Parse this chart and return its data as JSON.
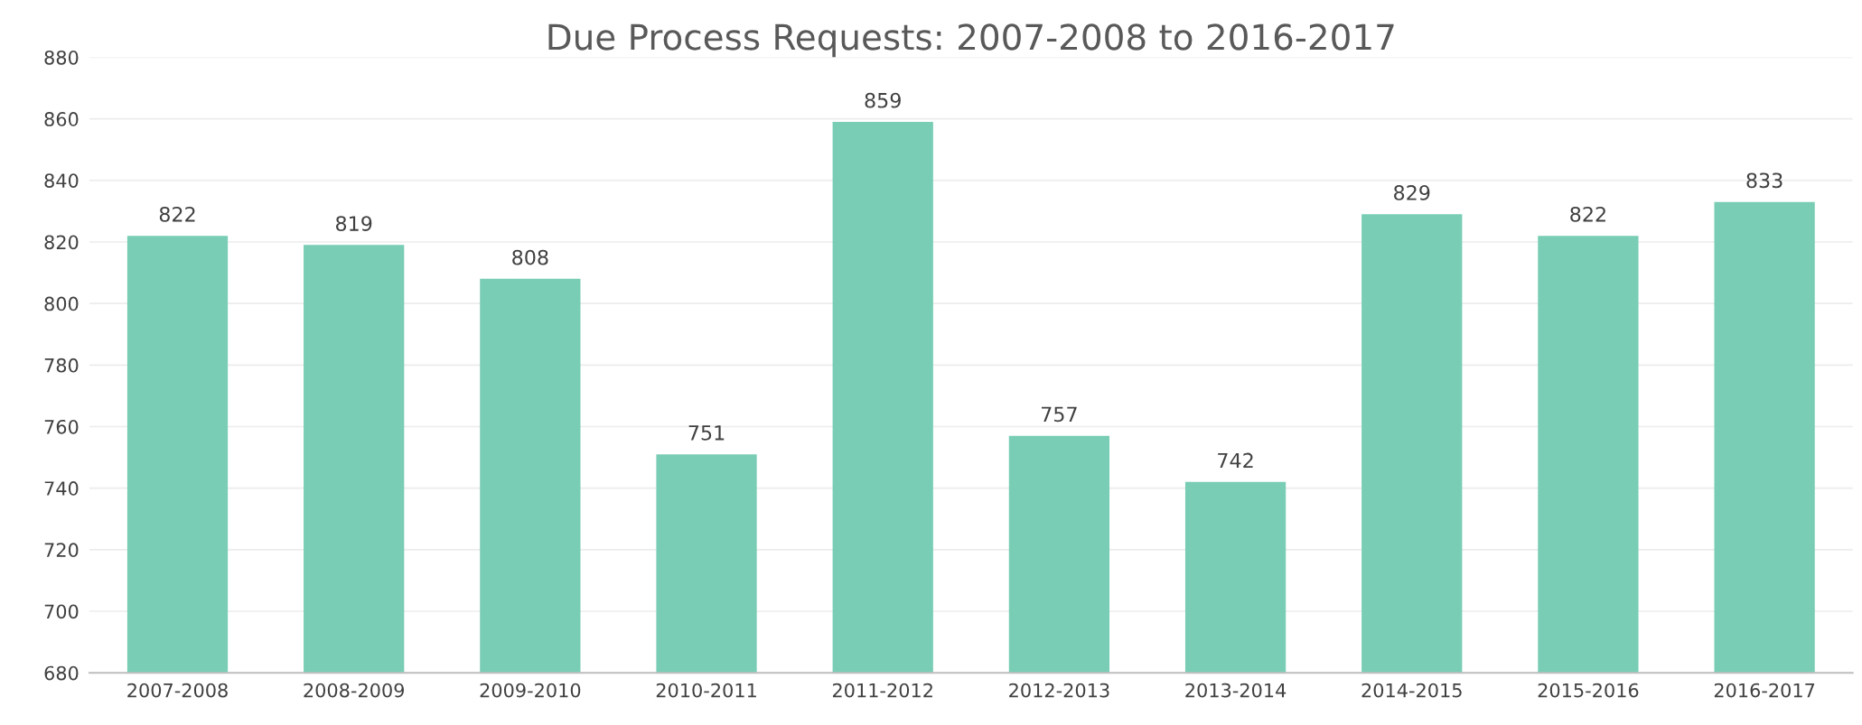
{
  "chart_data": {
    "type": "bar",
    "title": "Due Process Requests: 2007-2008 to 2016-2017",
    "categories": [
      "2007-2008",
      "2008-2009",
      "2009-2010",
      "2010-2011",
      "2011-2012",
      "2012-2013",
      "2013-2014",
      "2014-2015",
      "2015-2016",
      "2016-2017"
    ],
    "values": [
      822,
      819,
      808,
      751,
      859,
      757,
      742,
      829,
      822,
      833
    ],
    "color": "#78cdb4",
    "ylim": [
      680,
      880
    ],
    "yticks": [
      680,
      700,
      720,
      740,
      760,
      780,
      800,
      820,
      840,
      860,
      880
    ],
    "grid": "y",
    "data_labels": true
  }
}
